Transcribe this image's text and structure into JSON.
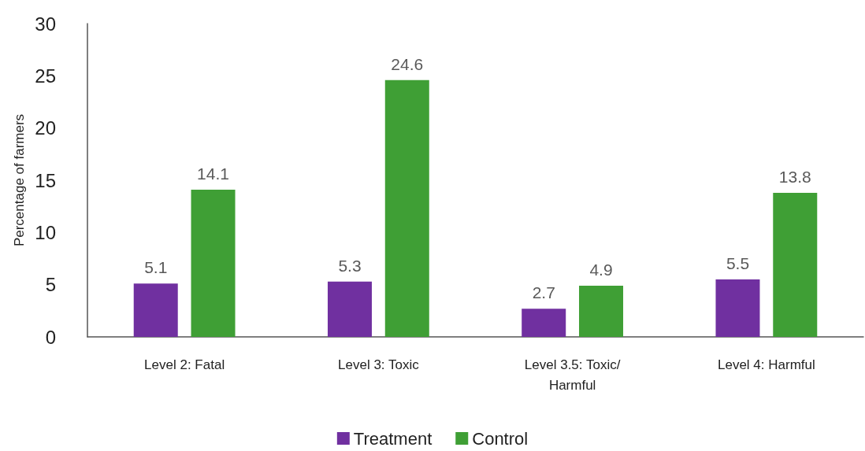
{
  "chart_data": {
    "type": "bar",
    "ylabel": "Percentage of farmers",
    "categories": [
      "Level 2: Fatal",
      "Level 3: Toxic",
      "Level 3.5: Toxic/Harmful",
      "Level 4: Harmful"
    ],
    "series": [
      {
        "name": "Treatment",
        "color": "#7030a0",
        "values": [
          5.1,
          5.3,
          2.7,
          5.5
        ]
      },
      {
        "name": "Control",
        "color": "#3f9f35",
        "values": [
          14.1,
          24.6,
          4.9,
          13.8
        ]
      }
    ],
    "ylim": [
      0,
      30
    ],
    "yticks": [
      0,
      5,
      10,
      15,
      20,
      25,
      30
    ],
    "grid": false,
    "legend": "bottom",
    "data_labels": true
  }
}
